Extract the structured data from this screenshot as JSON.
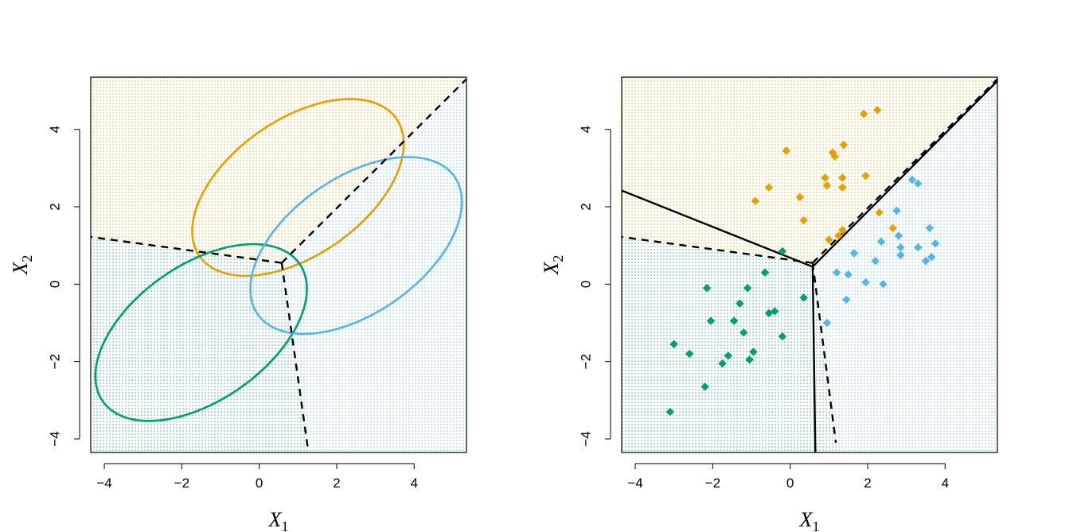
{
  "chart_data": [
    {
      "type": "scatter",
      "subtype": "decision-boundaries-with-ellipses",
      "title": "",
      "xlabel": "X1",
      "ylabel": "X2",
      "xlim": [
        -4.35,
        5.35
      ],
      "ylim": [
        -4.35,
        5.35
      ],
      "xticks": [
        -4,
        -2,
        0,
        2,
        4
      ],
      "yticks": [
        -4,
        -2,
        0,
        2,
        4
      ],
      "grid": false,
      "colors": {
        "orange": "#E69F00",
        "green": "#009E73",
        "blue": "#56B4E9"
      },
      "regions": [
        {
          "color": "orange",
          "description": "upper region"
        },
        {
          "color": "green",
          "description": "lower-left region"
        },
        {
          "color": "blue",
          "description": "lower-right region"
        }
      ],
      "boundary_lines": [
        {
          "style": "dashed",
          "from": [
            0.58,
            0.55
          ],
          "to": [
            5.35,
            5.3
          ]
        },
        {
          "style": "dashed",
          "from": [
            0.58,
            0.55
          ],
          "to": [
            -4.35,
            1.22
          ]
        },
        {
          "style": "dashed",
          "from": [
            0.58,
            0.55
          ],
          "to": [
            1.25,
            -4.2
          ]
        }
      ],
      "ellipses": [
        {
          "color": "orange",
          "center": [
            1.0,
            2.5
          ],
          "semi_axes": [
            3.1,
            1.75
          ],
          "angle_deg": 35
        },
        {
          "color": "green",
          "center": [
            -1.5,
            -1.25
          ],
          "semi_axes": [
            3.1,
            1.75
          ],
          "angle_deg": 35
        },
        {
          "color": "blue",
          "center": [
            2.5,
            1.0
          ],
          "semi_axes": [
            3.1,
            1.75
          ],
          "angle_deg": 35
        }
      ]
    },
    {
      "type": "scatter",
      "subtype": "decision-boundaries-with-points",
      "title": "",
      "xlabel": "X1",
      "ylabel": "X2",
      "xlim": [
        -4.35,
        5.35
      ],
      "ylim": [
        -4.35,
        5.35
      ],
      "xticks": [
        -4,
        -2,
        0,
        2,
        4
      ],
      "yticks": [
        -4,
        -2,
        0,
        2,
        4
      ],
      "grid": false,
      "marker": "diamond",
      "colors": {
        "orange": "#E69F00",
        "green": "#009E73",
        "blue": "#56B4E9"
      },
      "regions": [
        {
          "color": "orange",
          "description": "upper region"
        },
        {
          "color": "green",
          "description": "left region"
        },
        {
          "color": "blue",
          "description": "right region"
        }
      ],
      "boundary_lines": [
        {
          "style": "solid",
          "from": [
            0.58,
            0.45
          ],
          "to": [
            5.35,
            5.25
          ]
        },
        {
          "style": "solid",
          "from": [
            0.58,
            0.45
          ],
          "to": [
            -4.35,
            2.42
          ]
        },
        {
          "style": "solid",
          "from": [
            0.58,
            0.45
          ],
          "to": [
            0.65,
            -4.35
          ]
        },
        {
          "style": "dashed",
          "from": [
            0.58,
            0.55
          ],
          "to": [
            5.35,
            5.3
          ]
        },
        {
          "style": "dashed",
          "from": [
            0.58,
            0.55
          ],
          "to": [
            -4.35,
            1.22
          ]
        },
        {
          "style": "dashed",
          "from": [
            0.58,
            0.55
          ],
          "to": [
            1.18,
            -4.1
          ]
        }
      ],
      "series": [
        {
          "color": "orange",
          "points": [
            [
              -0.9,
              2.15
            ],
            [
              -0.55,
              2.5
            ],
            [
              -0.1,
              3.45
            ],
            [
              0.25,
              2.25
            ],
            [
              0.35,
              1.65
            ],
            [
              0.9,
              2.75
            ],
            [
              0.95,
              2.55
            ],
            [
              1.0,
              1.15
            ],
            [
              1.1,
              3.4
            ],
            [
              1.15,
              3.3
            ],
            [
              1.25,
              1.25
            ],
            [
              1.35,
              2.75
            ],
            [
              1.35,
              2.5
            ],
            [
              1.35,
              1.4
            ],
            [
              1.38,
              3.6
            ],
            [
              1.9,
              4.4
            ],
            [
              1.95,
              2.8
            ],
            [
              2.25,
              4.5
            ],
            [
              2.3,
              1.85
            ],
            [
              2.65,
              1.45
            ]
          ]
        },
        {
          "color": "green",
          "points": [
            [
              -3.1,
              -3.3
            ],
            [
              -3.0,
              -1.55
            ],
            [
              -2.6,
              -1.8
            ],
            [
              -2.2,
              -2.65
            ],
            [
              -2.15,
              -0.1
            ],
            [
              -2.05,
              -0.95
            ],
            [
              -1.75,
              -2.05
            ],
            [
              -1.6,
              -1.85
            ],
            [
              -1.45,
              -0.95
            ],
            [
              -1.3,
              -0.5
            ],
            [
              -1.2,
              -1.25
            ],
            [
              -1.1,
              -0.1
            ],
            [
              -1.05,
              -1.95
            ],
            [
              -0.95,
              -1.75
            ],
            [
              -0.65,
              0.3
            ],
            [
              -0.55,
              -0.75
            ],
            [
              -0.4,
              -0.7
            ],
            [
              -0.2,
              -1.35
            ],
            [
              -0.2,
              0.85
            ],
            [
              0.35,
              -0.35
            ]
          ]
        },
        {
          "color": "blue",
          "points": [
            [
              0.95,
              -1.0
            ],
            [
              1.2,
              0.3
            ],
            [
              1.45,
              -0.4
            ],
            [
              1.5,
              0.25
            ],
            [
              1.65,
              0.8
            ],
            [
              1.95,
              0.05
            ],
            [
              2.2,
              0.6
            ],
            [
              2.35,
              1.1
            ],
            [
              2.4,
              0.0
            ],
            [
              2.75,
              1.9
            ],
            [
              2.8,
              1.25
            ],
            [
              2.85,
              0.95
            ],
            [
              2.85,
              0.75
            ],
            [
              3.15,
              2.7
            ],
            [
              3.3,
              2.6
            ],
            [
              3.3,
              0.95
            ],
            [
              3.5,
              0.6
            ],
            [
              3.6,
              1.45
            ],
            [
              3.65,
              0.7
            ],
            [
              3.75,
              1.05
            ]
          ]
        }
      ]
    }
  ]
}
